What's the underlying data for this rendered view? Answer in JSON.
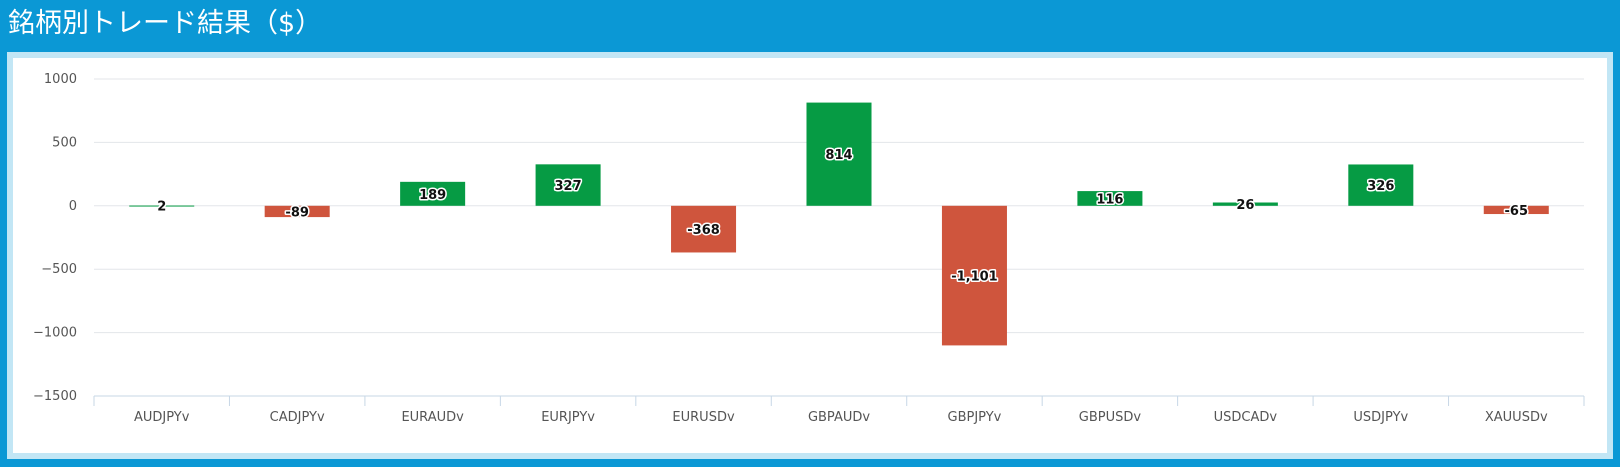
{
  "header": {
    "title": "銘柄別トレード結果（$）"
  },
  "colors": {
    "positive": "#069b44",
    "negative": "#cf553d",
    "background": "#0b98d5",
    "panel_border": "#c2e6f5",
    "grid": "#e3e6ea",
    "axis": "#c7d7e6"
  },
  "chart_data": {
    "type": "bar",
    "categories": [
      "AUDJPYv",
      "CADJPYv",
      "EURAUDv",
      "EURJPYv",
      "EURUSDv",
      "GBPAUDv",
      "GBPJPYv",
      "GBPUSDv",
      "USDCADv",
      "USDJPYv",
      "XAUUSDv"
    ],
    "values": [
      2,
      -89,
      189,
      327,
      -368,
      814,
      -1101,
      116,
      26,
      326,
      -65
    ],
    "data_labels": [
      "2",
      "-89",
      "189",
      "327",
      "-368",
      "814",
      "-1,101",
      "116",
      "26",
      "326",
      "-65"
    ],
    "y_ticks": [
      1000,
      500,
      0,
      -500,
      -1000,
      -1500
    ],
    "y_tick_labels": [
      "1000",
      "500",
      "0",
      "−500",
      "−1000",
      "−1500"
    ],
    "ylim": [
      -1500,
      1000
    ],
    "grid": true,
    "legend": "none"
  }
}
